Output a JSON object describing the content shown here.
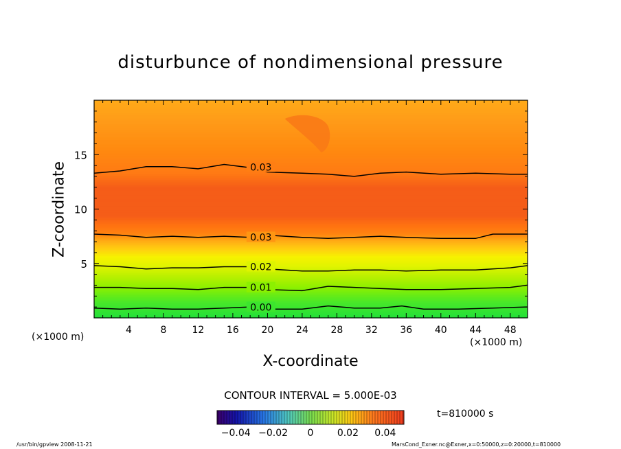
{
  "chart_data": {
    "type": "heatmap",
    "title": "disturbunce of nondimensional pressure",
    "xlabel": "X-coordinate",
    "ylabel": "Z-coordinate",
    "x_unit_left": "(×1000 m)",
    "x_unit_right": "(×1000 m)",
    "xlim": [
      0,
      50
    ],
    "ylim": [
      0,
      20
    ],
    "x_ticks": [
      4,
      8,
      12,
      16,
      20,
      24,
      28,
      32,
      36,
      40,
      44,
      48
    ],
    "y_ticks": [
      5,
      10,
      15
    ],
    "x_tick_labels": [
      "4",
      "8",
      "12",
      "16",
      "20",
      "24",
      "28",
      "32",
      "36",
      "40",
      "44",
      "48"
    ],
    "y_tick_labels": [
      "5",
      "10",
      "15"
    ],
    "contour_interval_text": "CONTOUR INTERVAL = 5.000E-03",
    "contours": [
      {
        "label": "0.03",
        "label_x": 17.5,
        "points": [
          [
            0,
            13.3
          ],
          [
            3,
            13.5
          ],
          [
            6,
            13.9
          ],
          [
            9,
            13.9
          ],
          [
            12,
            13.7
          ],
          [
            15,
            14.1
          ],
          [
            18,
            13.8
          ],
          [
            20,
            13.4
          ],
          [
            24,
            13.3
          ],
          [
            27,
            13.2
          ],
          [
            30,
            13.0
          ],
          [
            33,
            13.3
          ],
          [
            36,
            13.4
          ],
          [
            40,
            13.2
          ],
          [
            44,
            13.3
          ],
          [
            48,
            13.2
          ],
          [
            50,
            13.2
          ]
        ]
      },
      {
        "label": "0.03",
        "label_x": 17.5,
        "points": [
          [
            0,
            7.7
          ],
          [
            3,
            7.6
          ],
          [
            6,
            7.4
          ],
          [
            9,
            7.5
          ],
          [
            12,
            7.4
          ],
          [
            15,
            7.5
          ],
          [
            18,
            7.4
          ],
          [
            20,
            7.6
          ],
          [
            24,
            7.4
          ],
          [
            27,
            7.3
          ],
          [
            30,
            7.4
          ],
          [
            33,
            7.5
          ],
          [
            36,
            7.4
          ],
          [
            40,
            7.3
          ],
          [
            44,
            7.3
          ],
          [
            46,
            7.7
          ],
          [
            50,
            7.7
          ]
        ]
      },
      {
        "label": "0.02",
        "label_x": 17.5,
        "points": [
          [
            0,
            4.8
          ],
          [
            3,
            4.7
          ],
          [
            6,
            4.5
          ],
          [
            9,
            4.6
          ],
          [
            12,
            4.6
          ],
          [
            15,
            4.7
          ],
          [
            18,
            4.7
          ],
          [
            20,
            4.5
          ],
          [
            24,
            4.3
          ],
          [
            27,
            4.3
          ],
          [
            30,
            4.4
          ],
          [
            33,
            4.4
          ],
          [
            36,
            4.3
          ],
          [
            40,
            4.4
          ],
          [
            44,
            4.4
          ],
          [
            48,
            4.6
          ],
          [
            50,
            4.8
          ]
        ]
      },
      {
        "label": "0.01",
        "label_x": 17.5,
        "points": [
          [
            0,
            2.8
          ],
          [
            3,
            2.8
          ],
          [
            6,
            2.7
          ],
          [
            9,
            2.7
          ],
          [
            12,
            2.6
          ],
          [
            15,
            2.8
          ],
          [
            18,
            2.8
          ],
          [
            20,
            2.6
          ],
          [
            24,
            2.5
          ],
          [
            27,
            2.9
          ],
          [
            30,
            2.8
          ],
          [
            33,
            2.7
          ],
          [
            36,
            2.6
          ],
          [
            40,
            2.6
          ],
          [
            44,
            2.7
          ],
          [
            48,
            2.8
          ],
          [
            50,
            3.0
          ]
        ]
      },
      {
        "label": "0.00",
        "label_x": 17.5,
        "points": [
          [
            0,
            0.9
          ],
          [
            3,
            0.8
          ],
          [
            6,
            0.9
          ],
          [
            9,
            0.8
          ],
          [
            12,
            0.8
          ],
          [
            15,
            0.9
          ],
          [
            18,
            1.0
          ],
          [
            20,
            0.8
          ],
          [
            24,
            0.8
          ],
          [
            27,
            1.1
          ],
          [
            30,
            0.9
          ],
          [
            33,
            0.9
          ],
          [
            35.5,
            1.1
          ],
          [
            38,
            0.8
          ],
          [
            42,
            0.8
          ],
          [
            46,
            0.9
          ],
          [
            50,
            1.0
          ]
        ]
      }
    ],
    "colorbar": {
      "ticks": [
        -0.04,
        -0.02,
        0,
        0.02,
        0.04
      ],
      "tick_labels": [
        "-0.04",
        "-0.02",
        "0",
        "0.02",
        "0.04"
      ],
      "range": [
        -0.05,
        0.05
      ]
    },
    "colors": {
      "bottom": "#22e03a",
      "green_yellow": "#b8f000",
      "yellow": "#f6f200",
      "orange_light": "#ffaa18",
      "orange": "#ff8a10",
      "core": "#f55d18"
    }
  },
  "time_label": "t=810000 s",
  "footer_left": "/usr/bin/gpview   2008-11-21",
  "footer_right": "MarsCond_Exner.nc@Exner,x=0:50000,z=0:20000,t=810000"
}
